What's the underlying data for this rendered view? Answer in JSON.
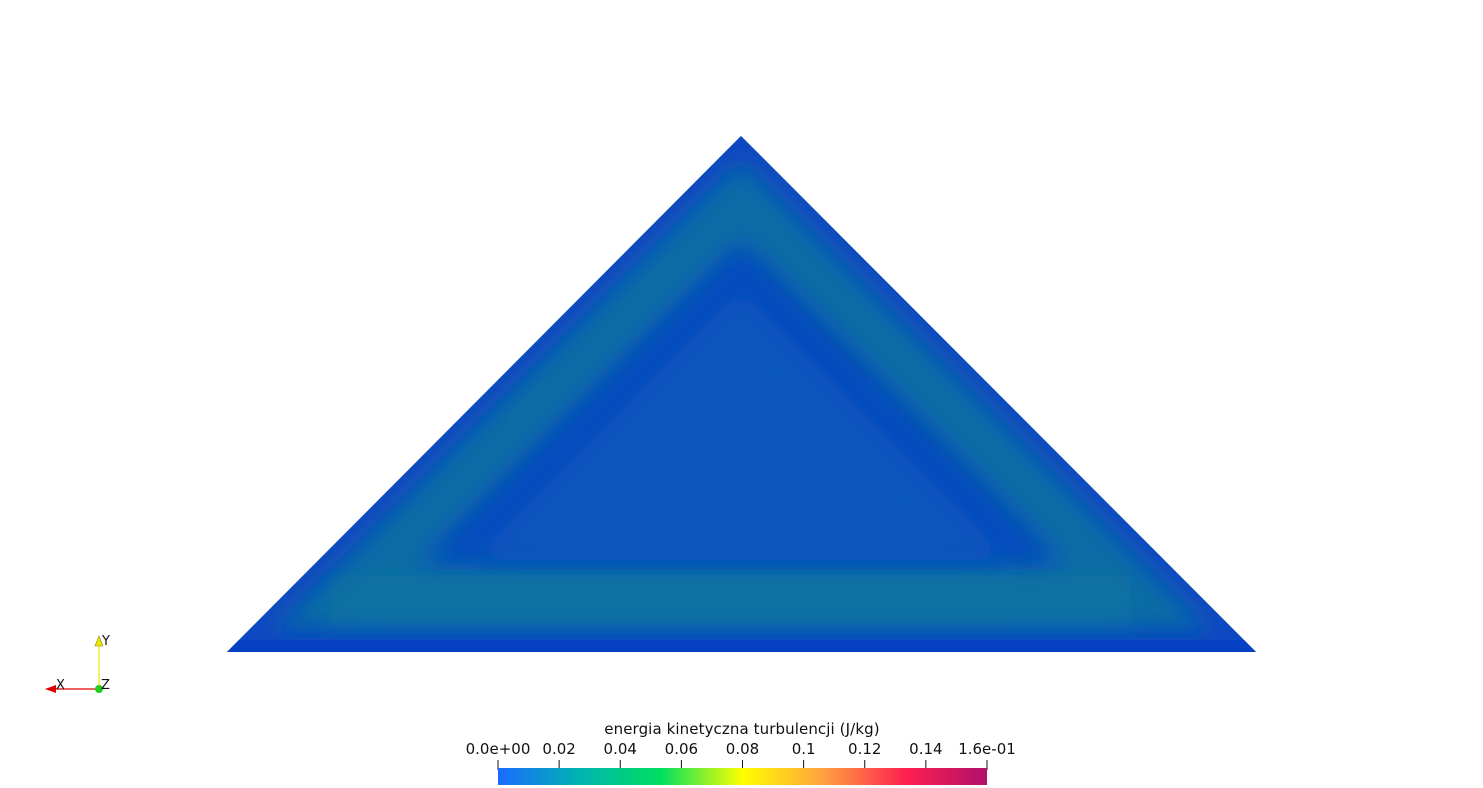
{
  "render_view": {
    "field": "energia kinetyczna turbulencji",
    "mesh_fill_color": "#0a4fbf",
    "mesh_band_color": "#0b6fa0",
    "background_color": "#ffffff"
  },
  "orientation_axes": {
    "x_label": "X",
    "y_label": "Y",
    "z_label": "Z",
    "x_color": "#e00000",
    "y_color": "#e8e800",
    "z_color": "#22cc22"
  },
  "color_legend": {
    "title": "energia kinetyczna turbulencji (J/kg)",
    "ticks": [
      {
        "label": "0.0e+00",
        "value": 0.0
      },
      {
        "label": "0.02",
        "value": 0.02
      },
      {
        "label": "0.04",
        "value": 0.04
      },
      {
        "label": "0.06",
        "value": 0.06
      },
      {
        "label": "0.08",
        "value": 0.08
      },
      {
        "label": "0.1",
        "value": 0.1
      },
      {
        "label": "0.12",
        "value": 0.12
      },
      {
        "label": "0.14",
        "value": 0.14
      },
      {
        "label": "1.6e-01",
        "value": 0.16
      }
    ],
    "range": [
      0.0,
      0.16
    ],
    "colormap_stops": [
      "#1a6bff",
      "#00b4b0",
      "#00e060",
      "#ffff00",
      "#ffa040",
      "#ff2050",
      "#b0106a"
    ]
  }
}
